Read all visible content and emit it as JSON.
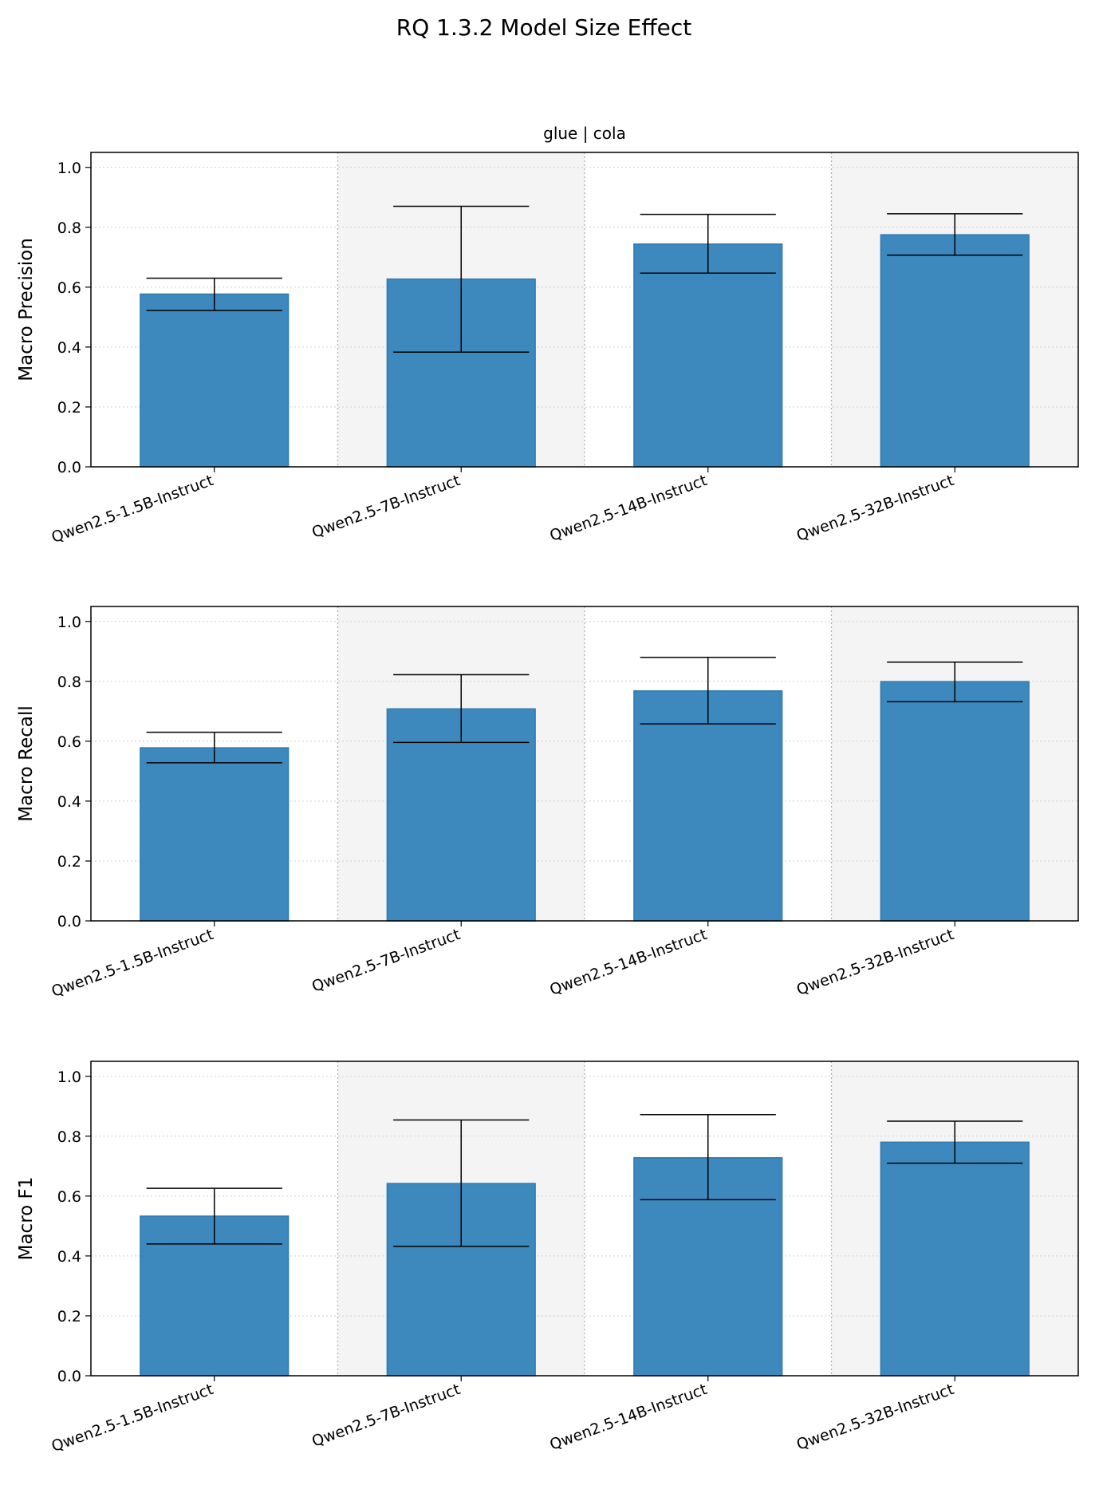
{
  "figure": {
    "title": "RQ 1.3.2 Model Size Effect"
  },
  "colors": {
    "bar": "#3d89be",
    "bar_edge": "#2f7ab3",
    "band": "#f4f4f4",
    "grid": "#d0d0d0",
    "error": "#000000"
  },
  "chart_data": [
    {
      "type": "bar",
      "title": "glue | cola",
      "xlabel": "",
      "ylabel": "Macro Precision",
      "ylim": [
        0,
        1.05
      ],
      "yticks": [
        "0.0",
        "0.2",
        "0.4",
        "0.6",
        "0.8",
        "1.0"
      ],
      "grid": true,
      "categories": [
        "Qwen2.5-1.5B-Instruct",
        "Qwen2.5-7B-Instruct",
        "Qwen2.5-14B-Instruct",
        "Qwen2.5-32B-Instruct"
      ],
      "values": [
        0.577,
        0.627,
        0.744,
        0.775
      ],
      "error_low": [
        0.522,
        0.383,
        0.647,
        0.707
      ],
      "error_high": [
        0.63,
        0.87,
        0.843,
        0.845
      ]
    },
    {
      "type": "bar",
      "title": "",
      "xlabel": "",
      "ylabel": "Macro Recall",
      "ylim": [
        0,
        1.05
      ],
      "yticks": [
        "0.0",
        "0.2",
        "0.4",
        "0.6",
        "0.8",
        "1.0"
      ],
      "grid": true,
      "categories": [
        "Qwen2.5-1.5B-Instruct",
        "Qwen2.5-7B-Instruct",
        "Qwen2.5-14B-Instruct",
        "Qwen2.5-32B-Instruct"
      ],
      "values": [
        0.578,
        0.708,
        0.768,
        0.799
      ],
      "error_low": [
        0.528,
        0.596,
        0.658,
        0.732
      ],
      "error_high": [
        0.63,
        0.822,
        0.88,
        0.864
      ]
    },
    {
      "type": "bar",
      "title": "",
      "xlabel": "",
      "ylabel": "Macro F1",
      "ylim": [
        0,
        1.05
      ],
      "yticks": [
        "0.0",
        "0.2",
        "0.4",
        "0.6",
        "0.8",
        "1.0"
      ],
      "grid": true,
      "categories": [
        "Qwen2.5-1.5B-Instruct",
        "Qwen2.5-7B-Instruct",
        "Qwen2.5-14B-Instruct",
        "Qwen2.5-32B-Instruct"
      ],
      "values": [
        0.533,
        0.642,
        0.728,
        0.78
      ],
      "error_low": [
        0.44,
        0.432,
        0.588,
        0.71
      ],
      "error_high": [
        0.626,
        0.854,
        0.872,
        0.85
      ]
    }
  ]
}
